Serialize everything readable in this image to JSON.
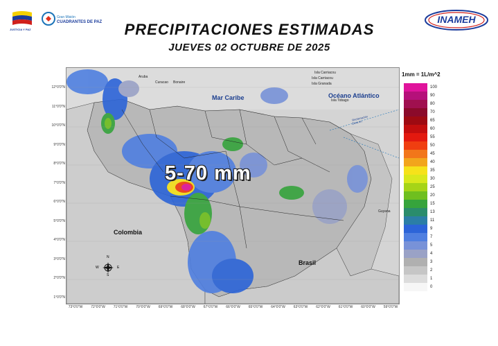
{
  "header": {
    "title": "PRECIPITACIONES ESTIMADAS",
    "subtitle": "JUEVES 02 OCTUBRE DE 2025"
  },
  "logos": {
    "left_caption": "JUSTICIA Y PAZ",
    "left_brand_top": "Gran Misión",
    "left_brand_main": "CUADRANTES DE PAZ",
    "right_brand": "INAMEH"
  },
  "map": {
    "labels": {
      "sea": "Mar Caribe",
      "ocean": "Océano Atlántico",
      "colombia": "Colombia",
      "brasil": "Brasil",
      "range": "5-70 mm",
      "aruba": "Aruba",
      "curacao": "Curacao",
      "bonaire": "Bonaire",
      "isla_carriacou_top": "Isla Carriacou",
      "isla_carriacou": "Isla Carriacou",
      "isla_granada": "Isla Granada",
      "isla_tobago": "Isla Tobago",
      "guyana": "Guyana",
      "reclamation_line_1": "Reclamación",
      "reclamation_line_2": "Zona en"
    },
    "lat_ticks": [
      "12°0'0\"N",
      "11°0'0\"N",
      "10°0'0\"N",
      "9°0'0\"N",
      "8°0'0\"N",
      "7°0'0\"N",
      "6°0'0\"N",
      "5°0'0\"N",
      "4°0'0\"N",
      "3°0'0\"N",
      "2°0'0\"N",
      "1°0'0\"N"
    ],
    "lon_ticks": [
      "73°0'0\"W",
      "72°0'0\"W",
      "71°0'0\"W",
      "70°0'0\"W",
      "69°0'0\"W",
      "68°0'0\"W",
      "67°0'0\"W",
      "66°0'0\"W",
      "65°0'0\"W",
      "64°0'0\"W",
      "63°0'0\"W",
      "62°0'0\"W",
      "61°0'0\"W",
      "60°0'0\"W",
      "59°0'0\"W"
    ],
    "compass": {
      "n": "N",
      "s": "S",
      "e": "E",
      "w": "W"
    }
  },
  "legend": {
    "title": "1mm = 1L/m^2",
    "items": [
      {
        "label": "100",
        "color": "#e0139c"
      },
      {
        "label": "90",
        "color": "#b5107a"
      },
      {
        "label": "80",
        "color": "#a0104f"
      },
      {
        "label": "70",
        "color": "#8b0a2a"
      },
      {
        "label": "65",
        "color": "#9e0a12"
      },
      {
        "label": "60",
        "color": "#c30e0e"
      },
      {
        "label": "55",
        "color": "#e3190f"
      },
      {
        "label": "50",
        "color": "#f03e10"
      },
      {
        "label": "45",
        "color": "#f2761a"
      },
      {
        "label": "40",
        "color": "#f2a51c"
      },
      {
        "label": "35",
        "color": "#f6e21a"
      },
      {
        "label": "30",
        "color": "#d9e81c"
      },
      {
        "label": "25",
        "color": "#a6d417"
      },
      {
        "label": "20",
        "color": "#6fbf1f"
      },
      {
        "label": "15",
        "color": "#36a43c"
      },
      {
        "label": "13",
        "color": "#2a8c6c"
      },
      {
        "label": "11",
        "color": "#2b7ea6"
      },
      {
        "label": "9",
        "color": "#2c64d8"
      },
      {
        "label": "7",
        "color": "#4f7fe0"
      },
      {
        "label": "5",
        "color": "#7892d8"
      },
      {
        "label": "4",
        "color": "#9aa2c6"
      },
      {
        "label": "3",
        "color": "#b0b0b0"
      },
      {
        "label": "2",
        "color": "#c6c6c6"
      },
      {
        "label": "1",
        "color": "#dcdcdc"
      },
      {
        "label": "0",
        "color": "#f6f6f6"
      }
    ]
  }
}
